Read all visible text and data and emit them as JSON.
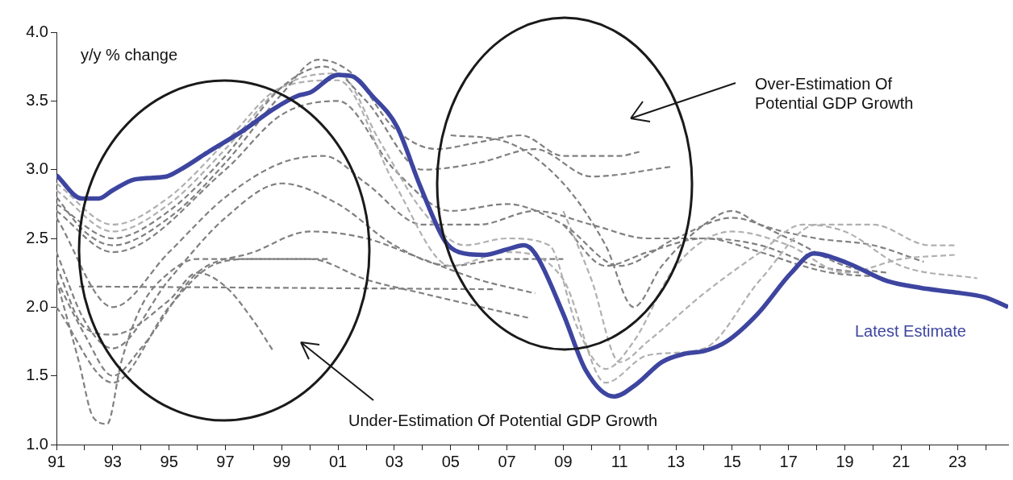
{
  "chart_data": {
    "type": "line",
    "ylabel": "y/y % change",
    "xlim": [
      1991,
      2024.8
    ],
    "ylim": [
      1.0,
      4.0
    ],
    "xticks": [
      {
        "value": 1991,
        "label": "91"
      },
      {
        "value": 1992,
        "label": null
      },
      {
        "value": 1993,
        "label": "93"
      },
      {
        "value": 1994,
        "label": null
      },
      {
        "value": 1995,
        "label": "95"
      },
      {
        "value": 1996,
        "label": null
      },
      {
        "value": 1997,
        "label": "97"
      },
      {
        "value": 1998,
        "label": null
      },
      {
        "value": 1999,
        "label": "99"
      },
      {
        "value": 2000,
        "label": null
      },
      {
        "value": 2001,
        "label": "01"
      },
      {
        "value": 2002,
        "label": null
      },
      {
        "value": 2003,
        "label": "03"
      },
      {
        "value": 2004,
        "label": null
      },
      {
        "value": 2005,
        "label": "05"
      },
      {
        "value": 2006,
        "label": null
      },
      {
        "value": 2007,
        "label": "07"
      },
      {
        "value": 2008,
        "label": null
      },
      {
        "value": 2009,
        "label": "09"
      },
      {
        "value": 2010,
        "label": null
      },
      {
        "value": 2011,
        "label": "11"
      },
      {
        "value": 2012,
        "label": null
      },
      {
        "value": 2013,
        "label": "13"
      },
      {
        "value": 2014,
        "label": null
      },
      {
        "value": 2015,
        "label": "15"
      },
      {
        "value": 2016,
        "label": null
      },
      {
        "value": 2017,
        "label": "17"
      },
      {
        "value": 2018,
        "label": null
      },
      {
        "value": 2019,
        "label": "19"
      },
      {
        "value": 2020,
        "label": null
      },
      {
        "value": 2021,
        "label": "21"
      },
      {
        "value": 2022,
        "label": null
      },
      {
        "value": 2023,
        "label": "23"
      },
      {
        "value": 2024,
        "label": null
      }
    ],
    "yticks": [
      {
        "value": 1.0,
        "label": "1.0"
      },
      {
        "value": 1.5,
        "label": "1.5"
      },
      {
        "value": 2.0,
        "label": "2.0"
      },
      {
        "value": 2.5,
        "label": "2.5"
      },
      {
        "value": 3.0,
        "label": "3.0"
      },
      {
        "value": 3.5,
        "label": "3.5"
      },
      {
        "value": 4.0,
        "label": "4.0"
      }
    ],
    "grid": false,
    "legend": false,
    "marker": "none",
    "annotations": [
      "Over-Estimation Of Potential GDP Growth",
      "Under-Estimation Of Potential GDP Growth"
    ],
    "series": [
      {
        "color": "#808080",
        "line_style": "dashed",
        "x": [
          1991,
          1992,
          1993,
          1995,
          1997,
          1999,
          2000.3,
          2001.5,
          2003,
          2004.5,
          2006,
          2007.5,
          2009,
          2011,
          2011.7
        ],
        "values": [
          2.8,
          2.55,
          2.45,
          2.65,
          3.05,
          3.55,
          3.8,
          3.7,
          3.3,
          3.15,
          3.2,
          3.25,
          3.1,
          3.1,
          3.13
        ]
      },
      {
        "color": "#808080",
        "line_style": "dashed",
        "x": [
          1991,
          1993,
          1995,
          1997,
          1999,
          2000.5,
          2002,
          2004,
          2006,
          2008,
          2010,
          2012.8
        ],
        "values": [
          2.75,
          2.5,
          2.7,
          3.1,
          3.6,
          3.75,
          3.5,
          3.0,
          3.05,
          3.15,
          2.95,
          3.02
        ]
      },
      {
        "color": "#b0b0b0",
        "line_style": "dashed",
        "x": [
          1991,
          1993,
          1995,
          1997,
          1999,
          2001,
          2002.5,
          2004,
          2005.5,
          2007,
          2008.5,
          2009.5,
          2010.5,
          2011.5,
          2013,
          2015,
          2017,
          2019,
          2021,
          2022.9
        ],
        "values": [
          2.85,
          2.55,
          2.75,
          3.15,
          3.6,
          3.7,
          3.2,
          2.7,
          2.45,
          2.5,
          2.45,
          1.85,
          1.55,
          1.75,
          2.3,
          2.55,
          2.45,
          2.25,
          2.35,
          2.38
        ]
      },
      {
        "color": "#b0b0b0",
        "line_style": "dashed",
        "x": [
          1991,
          1993,
          1995,
          1997,
          1999,
          2001,
          2003,
          2005,
          2007,
          2009,
          2010.5,
          2012,
          2014,
          2016,
          2018,
          2020,
          2022,
          2022.9
        ],
        "values": [
          2.9,
          2.6,
          2.8,
          3.2,
          3.6,
          3.65,
          2.9,
          2.3,
          2.4,
          2.2,
          1.45,
          1.65,
          1.7,
          2.2,
          2.6,
          2.6,
          2.45,
          2.45
        ]
      },
      {
        "color": "#808080",
        "line_style": "dashed",
        "x": [
          1991,
          1993,
          1997,
          1999,
          2001,
          2003,
          2005,
          2007,
          2009,
          2011,
          2013,
          2015,
          2017,
          2019,
          2020.5
        ],
        "values": [
          2.7,
          2.4,
          3.0,
          3.4,
          3.5,
          3.0,
          2.7,
          2.75,
          2.6,
          2.3,
          2.5,
          2.65,
          2.5,
          2.3,
          2.25
        ]
      },
      {
        "color": "#808080",
        "line_style": "dashed",
        "x": [
          1991,
          1993,
          1995,
          1997,
          1999,
          2000.5,
          2002,
          2004,
          2006,
          2008,
          2010,
          2012,
          2014,
          2016,
          2018,
          2019.5
        ],
        "values": [
          2.65,
          2.0,
          2.4,
          2.8,
          3.05,
          3.1,
          2.9,
          2.6,
          2.6,
          2.7,
          2.6,
          2.5,
          2.5,
          2.45,
          2.3,
          2.25
        ]
      },
      {
        "color": "#808080",
        "line_style": "dashed",
        "x": [
          1991,
          1992,
          1993,
          1995,
          1997,
          1999,
          2001,
          2003,
          2005,
          2007,
          2009
        ],
        "values": [
          2.4,
          1.9,
          1.7,
          2.2,
          2.65,
          2.9,
          2.75,
          2.45,
          2.3,
          2.35,
          2.35
        ]
      },
      {
        "color": "#808080",
        "line_style": "dashed",
        "x": [
          1991,
          1992,
          1993,
          1994,
          1996,
          1998,
          2000,
          2002,
          2004,
          2006,
          2008
        ],
        "values": [
          2.2,
          1.8,
          1.5,
          1.7,
          2.25,
          2.4,
          2.55,
          2.5,
          2.35,
          2.2,
          2.1
        ]
      },
      {
        "color": "#808080",
        "line_style": "dashed",
        "x": [
          1991.8,
          2006.6
        ],
        "values": [
          2.15,
          2.13
        ]
      },
      {
        "color": "#808080",
        "line_style": "dashed",
        "x": [
          1991,
          1993,
          1995,
          1996.5,
          1998,
          2000.7
        ],
        "values": [
          2.0,
          1.45,
          2.0,
          2.3,
          2.35,
          2.35
        ]
      },
      {
        "color": "#808080",
        "line_style": "dashed",
        "x": [
          1991,
          1992,
          1993,
          1995,
          1996,
          1997,
          1998,
          1998.7
        ],
        "values": [
          2.3,
          1.85,
          1.8,
          2.05,
          2.25,
          2.15,
          1.9,
          1.68
        ]
      },
      {
        "color": "#808080",
        "line_style": "dashed",
        "x": [
          1991,
          1991.8,
          1992.3,
          1992.8,
          1993.3,
          1994,
          1995,
          1996,
          1998,
          2000,
          2002,
          2004,
          2007.8
        ],
        "values": [
          2.2,
          1.6,
          1.2,
          1.15,
          1.6,
          2.0,
          2.25,
          2.35,
          2.35,
          2.35,
          2.2,
          2.1,
          1.92
        ]
      },
      {
        "color": "#b0b0b0",
        "line_style": "dashed",
        "x": [
          2009,
          2010,
          2011,
          2012,
          2014,
          2016,
          2017.5,
          2019,
          2021,
          2023.7
        ],
        "values": [
          2.7,
          2.2,
          1.6,
          1.75,
          2.1,
          2.4,
          2.6,
          2.55,
          2.3,
          2.21
        ]
      },
      {
        "color": "#808080",
        "line_style": "dashed",
        "x": [
          2005,
          2007,
          2009,
          2010.5,
          2011.5,
          2012.5,
          2014,
          2015,
          2016,
          2018,
          2020,
          2021.8
        ],
        "values": [
          3.25,
          3.2,
          2.9,
          2.45,
          2.0,
          2.3,
          2.6,
          2.7,
          2.6,
          2.5,
          2.45,
          2.33
        ]
      },
      {
        "color": "#808080",
        "line_style": "dashed",
        "x": [
          2009,
          2010.5,
          2012,
          2014,
          2016,
          2017.5,
          2018.5,
          2020.3
        ],
        "values": [
          2.6,
          2.3,
          2.4,
          2.5,
          2.4,
          2.3,
          2.25,
          2.22
        ]
      },
      {
        "name": "Latest Estimate",
        "color": "#3d45a0",
        "line_style": "solid",
        "x": [
          1991.0,
          1991.9,
          1992.5,
          1993.0,
          1993.8,
          1994.9,
          1995.4,
          1996.4,
          1997.6,
          1998.7,
          1999.6,
          2000.0,
          2001.0,
          2001.5,
          2002.2,
          2003.1,
          2003.9,
          2004.8,
          2005.3,
          2006.2,
          2007.0,
          2007.6,
          2008.0,
          2009.0,
          2009.8,
          2010.8,
          2011.6,
          2012.5,
          2013.3,
          2014.0,
          2014.8,
          2015.9,
          2017.1,
          2017.9,
          2019.1,
          2020.5,
          2021.7,
          2022.8,
          2024.0,
          2024.8
        ],
        "values": [
          2.96,
          2.79,
          2.79,
          2.85,
          2.93,
          2.95,
          3.0,
          3.13,
          3.28,
          3.44,
          3.54,
          3.56,
          3.69,
          3.68,
          3.54,
          3.31,
          2.89,
          2.48,
          2.4,
          2.38,
          2.42,
          2.45,
          2.39,
          1.95,
          1.54,
          1.35,
          1.44,
          1.6,
          1.66,
          1.68,
          1.75,
          1.95,
          2.25,
          2.39,
          2.32,
          2.19,
          2.14,
          2.11,
          2.07,
          2.0
        ]
      }
    ]
  }
}
